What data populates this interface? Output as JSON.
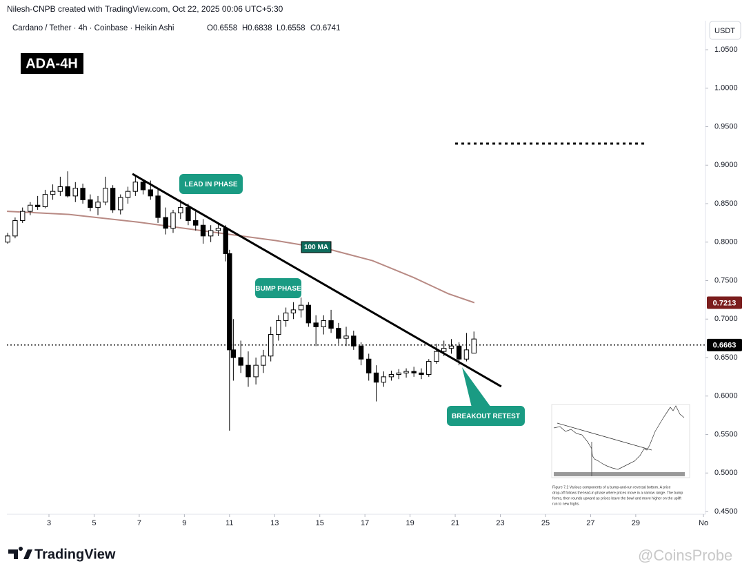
{
  "header": {
    "created": "Nilesh-CNPB created with TradingView.com, Oct 22, 2025 00:06 UTC+5:30",
    "symbol": "Cardano / Tether · 4h · Coinbase · Heikin Ashi",
    "ohlc": [
      "O0.6558",
      "H0.6838",
      "L0.6558",
      "C0.6741"
    ]
  },
  "badge": "ADA-4H",
  "currency": "USDT",
  "chart_data": {
    "type": "candlestick",
    "up_color": "#ffffff",
    "down_color": "#000000",
    "x": [
      1.17,
      1.5,
      1.83,
      2.17,
      2.5,
      2.83,
      3.17,
      3.5,
      3.83,
      4.17,
      4.5,
      4.83,
      5.17,
      5.5,
      5.83,
      6.17,
      6.5,
      6.83,
      7.17,
      7.5,
      7.83,
      8.17,
      8.5,
      8.83,
      9.17,
      9.5,
      9.83,
      10.17,
      10.5,
      10.83,
      11,
      11.17,
      11.5,
      11.83,
      12.17,
      12.5,
      12.83,
      13.17,
      13.5,
      13.83,
      14.17,
      14.5,
      14.83,
      15.17,
      15.5,
      15.83,
      16.17,
      16.5,
      16.83,
      17.17,
      17.5,
      17.83,
      18.17,
      18.5,
      18.83,
      19.17,
      19.5,
      19.83,
      20.17,
      20.5,
      20.83,
      21.17,
      21.5,
      21.83
    ],
    "open": [
      0.8,
      0.808,
      0.828,
      0.84,
      0.848,
      0.846,
      0.862,
      0.866,
      0.872,
      0.86,
      0.87,
      0.855,
      0.845,
      0.852,
      0.87,
      0.842,
      0.858,
      0.866,
      0.878,
      0.868,
      0.86,
      0.832,
      0.818,
      0.838,
      0.845,
      0.828,
      0.822,
      0.808,
      0.815,
      0.818,
      0.785,
      0.66,
      0.65,
      0.64,
      0.625,
      0.64,
      0.652,
      0.68,
      0.698,
      0.708,
      0.712,
      0.718,
      0.695,
      0.69,
      0.698,
      0.688,
      0.675,
      0.678,
      0.665,
      0.648,
      0.63,
      0.618,
      0.625,
      0.628,
      0.63,
      0.632,
      0.63,
      0.628,
      0.645,
      0.658,
      0.662,
      0.665,
      0.648,
      0.6558
    ],
    "high": [
      0.812,
      0.832,
      0.845,
      0.852,
      0.86,
      0.868,
      0.875,
      0.885,
      0.892,
      0.878,
      0.876,
      0.862,
      0.86,
      0.885,
      0.874,
      0.862,
      0.872,
      0.885,
      0.882,
      0.88,
      0.868,
      0.845,
      0.842,
      0.855,
      0.85,
      0.84,
      0.83,
      0.822,
      0.825,
      0.822,
      0.79,
      0.7,
      0.672,
      0.658,
      0.65,
      0.66,
      0.69,
      0.705,
      0.715,
      0.722,
      0.728,
      0.722,
      0.705,
      0.705,
      0.712,
      0.695,
      0.69,
      0.685,
      0.67,
      0.655,
      0.64,
      0.632,
      0.633,
      0.635,
      0.636,
      0.638,
      0.636,
      0.648,
      0.668,
      0.672,
      0.674,
      0.67,
      0.682,
      0.6838
    ],
    "low": [
      0.798,
      0.805,
      0.825,
      0.835,
      0.842,
      0.844,
      0.855,
      0.86,
      0.858,
      0.852,
      0.85,
      0.84,
      0.835,
      0.848,
      0.838,
      0.836,
      0.85,
      0.86,
      0.862,
      0.855,
      0.825,
      0.81,
      0.812,
      0.83,
      0.822,
      0.815,
      0.798,
      0.8,
      0.808,
      0.775,
      0.555,
      0.62,
      0.63,
      0.612,
      0.615,
      0.63,
      0.645,
      0.672,
      0.69,
      0.7,
      0.702,
      0.69,
      0.665,
      0.68,
      0.682,
      0.668,
      0.665,
      0.66,
      0.64,
      0.62,
      0.593,
      0.612,
      0.62,
      0.622,
      0.624,
      0.625,
      0.622,
      0.625,
      0.642,
      0.652,
      0.655,
      0.64,
      0.645,
      0.6558
    ],
    "close": [
      0.808,
      0.828,
      0.84,
      0.848,
      0.846,
      0.862,
      0.866,
      0.872,
      0.86,
      0.87,
      0.855,
      0.845,
      0.852,
      0.87,
      0.842,
      0.858,
      0.866,
      0.878,
      0.868,
      0.86,
      0.832,
      0.818,
      0.838,
      0.845,
      0.828,
      0.822,
      0.808,
      0.815,
      0.818,
      0.785,
      0.66,
      0.65,
      0.64,
      0.625,
      0.64,
      0.652,
      0.68,
      0.698,
      0.708,
      0.712,
      0.718,
      0.695,
      0.69,
      0.698,
      0.688,
      0.675,
      0.678,
      0.665,
      0.648,
      0.63,
      0.618,
      0.625,
      0.628,
      0.63,
      0.632,
      0.63,
      0.628,
      0.645,
      0.658,
      0.662,
      0.665,
      0.648,
      0.66,
      0.6741
    ],
    "ma": {
      "name": "100 MA",
      "color": "#b88a84",
      "label_color": "#7b1d1d",
      "x": [
        1.14,
        3.89,
        6.94,
        10,
        13.05,
        15.5,
        17.33,
        19.16,
        20.69,
        21.85
      ],
      "values": [
        0.84,
        0.836,
        0.826,
        0.814,
        0.802,
        0.79,
        0.776,
        0.754,
        0.733,
        0.7213
      ]
    },
    "last_price": 0.6663,
    "target": {
      "x": [
        21,
        29.5
      ],
      "value": 0.928
    },
    "trendline": {
      "x": [
        6.7,
        23.04
      ],
      "values": [
        0.8886,
        0.6124
      ]
    },
    "annotations": [
      "LEAD IN PHASE",
      "BUMP PHASE",
      "BREAKOUT RETEST"
    ],
    "xlim": [
      1.136,
      32.09
    ],
    "ylim": [
      0.4464,
      1.0877
    ],
    "xticks": [
      3,
      5,
      7,
      9,
      11,
      13,
      15,
      17,
      19,
      21,
      23,
      25,
      27,
      29,
      {
        "value": 32,
        "label": "No"
      }
    ],
    "yticks": [
      {
        "value": 0.45,
        "label": "0.4500"
      },
      {
        "value": 0.5,
        "label": "0.5000"
      },
      {
        "value": 0.55,
        "label": "0.5500"
      },
      {
        "value": 0.6,
        "label": "0.6000"
      },
      {
        "value": 0.65,
        "label": "0.6500"
      },
      {
        "value": 0.7,
        "label": "0.7000"
      },
      {
        "value": 0.75,
        "label": "0.7500"
      },
      {
        "value": 0.8,
        "label": "0.8000"
      },
      {
        "value": 0.85,
        "label": "0.8500"
      },
      {
        "value": 0.9,
        "label": "0.9000"
      },
      {
        "value": 0.95,
        "label": "0.9500"
      },
      {
        "value": 1.0,
        "label": "1.0000"
      },
      {
        "value": 1.05,
        "label": "1.0500"
      }
    ]
  },
  "inset": {
    "caption_lines": [
      "Figure 7.2 Various components of a bump-and-run reversal bottom. A price",
      "drop-off follows the lead-in phase where prices move in a narrow range. The bump",
      "forms, then rounds upward as prices leave the bowl and move higher on the uplift",
      "run to new highs."
    ]
  },
  "footer": {
    "brand": "TradingView",
    "watermark": "@CoinsProbe"
  }
}
